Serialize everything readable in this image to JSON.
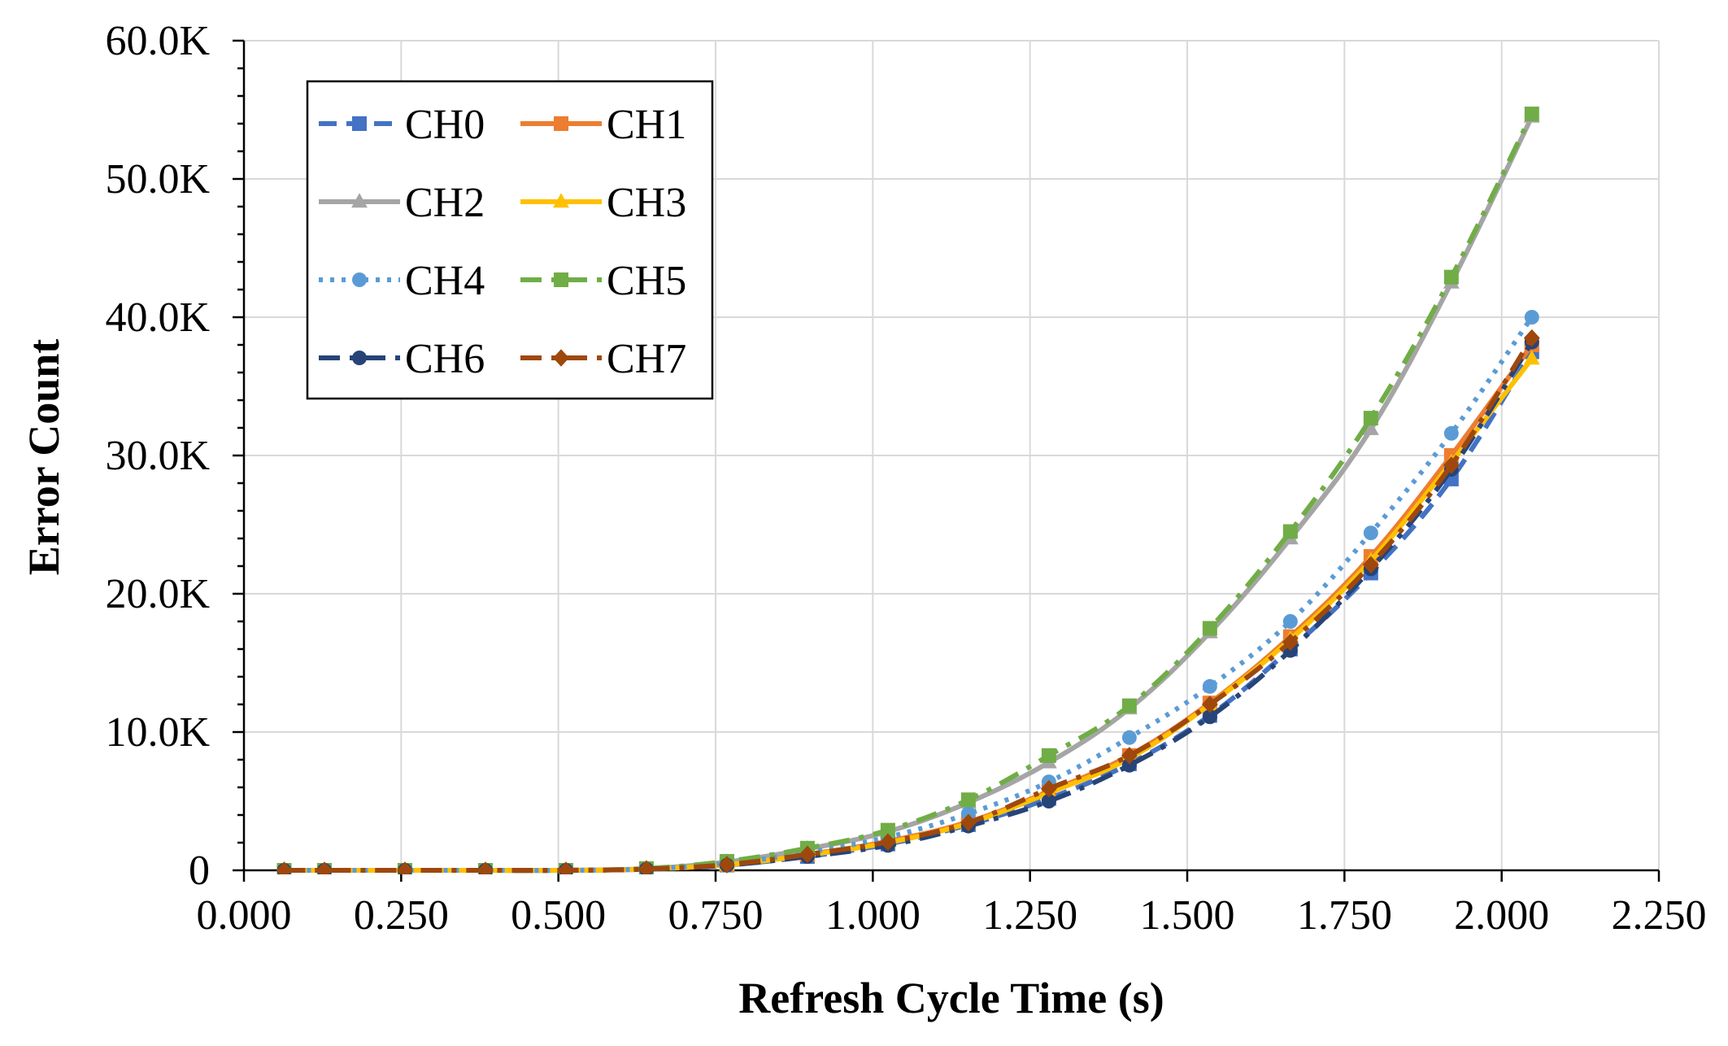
{
  "chart_data": {
    "type": "line",
    "title": "",
    "xlabel": "Refresh Cycle Time (s)",
    "ylabel": "Error Count",
    "xlim": [
      0,
      2.25
    ],
    "ylim": [
      0,
      60000
    ],
    "grid": true,
    "legend_position": "top-left",
    "xticks": [
      0,
      0.25,
      0.5,
      0.75,
      1.0,
      1.25,
      1.5,
      1.75,
      2.0,
      2.25
    ],
    "xtick_labels": [
      "0.000",
      "0.250",
      "0.500",
      "0.750",
      "1.000",
      "1.250",
      "1.500",
      "1.750",
      "2.000",
      "2.250"
    ],
    "yticks": [
      0,
      10000,
      20000,
      30000,
      40000,
      50000,
      60000
    ],
    "ytick_labels": [
      "0",
      "10.0K",
      "20.0K",
      "30.0K",
      "40.0K",
      "50.0K",
      "60.0K"
    ],
    "x": [
      0.064,
      0.128,
      0.256,
      0.384,
      0.512,
      0.64,
      0.768,
      0.896,
      1.024,
      1.152,
      1.28,
      1.408,
      1.536,
      1.664,
      1.792,
      1.92,
      2.048
    ],
    "series": [
      {
        "name": "CH0",
        "color": "#4472c4",
        "dash": "long",
        "marker": "square",
        "values": [
          0,
          0,
          0,
          0,
          0,
          80,
          380,
          1000,
          1900,
          3300,
          5200,
          7700,
          11200,
          16000,
          21500,
          28300,
          37500
        ]
      },
      {
        "name": "CH1",
        "color": "#ed7d31",
        "dash": "solid",
        "marker": "square",
        "values": [
          0,
          0,
          0,
          0,
          0,
          90,
          420,
          1150,
          2100,
          3500,
          5700,
          8300,
          12100,
          16900,
          22700,
          30000,
          38000
        ]
      },
      {
        "name": "CH2",
        "color": "#a5a5a5",
        "dash": "solid",
        "marker": "triangle",
        "values": [
          0,
          0,
          0,
          0,
          0,
          120,
          600,
          1550,
          2800,
          4900,
          7800,
          11700,
          17200,
          24000,
          31900,
          42500,
          54500
        ]
      },
      {
        "name": "CH3",
        "color": "#ffc000",
        "dash": "solid",
        "marker": "triangle",
        "values": [
          0,
          0,
          0,
          0,
          0,
          85,
          400,
          1100,
          2000,
          3400,
          5600,
          8100,
          12000,
          16700,
          22400,
          29500,
          37000
        ]
      },
      {
        "name": "CH4",
        "color": "#5b9bd5",
        "dash": "dot",
        "marker": "circle",
        "values": [
          0,
          0,
          0,
          0,
          0,
          100,
          500,
          1300,
          2400,
          4100,
          6400,
          9600,
          13300,
          18000,
          24400,
          31600,
          40000
        ]
      },
      {
        "name": "CH5",
        "color": "#70ad47",
        "dash": "dashdot",
        "marker": "square",
        "values": [
          0,
          0,
          0,
          0,
          0,
          130,
          650,
          1600,
          2900,
          5100,
          8300,
          11900,
          17500,
          24500,
          32700,
          42900,
          54700
        ]
      },
      {
        "name": "CH6",
        "color": "#264478",
        "dash": "dashdot",
        "marker": "circle",
        "values": [
          0,
          0,
          0,
          0,
          0,
          80,
          370,
          1000,
          1800,
          3200,
          5000,
          7600,
          11100,
          15900,
          21800,
          29000,
          38200
        ]
      },
      {
        "name": "CH7",
        "color": "#9e480e",
        "dash": "dashdot",
        "marker": "diamond",
        "values": [
          0,
          0,
          0,
          0,
          0,
          90,
          410,
          1150,
          2050,
          3450,
          5900,
          8300,
          12000,
          16500,
          22100,
          29300,
          38500
        ]
      }
    ]
  }
}
